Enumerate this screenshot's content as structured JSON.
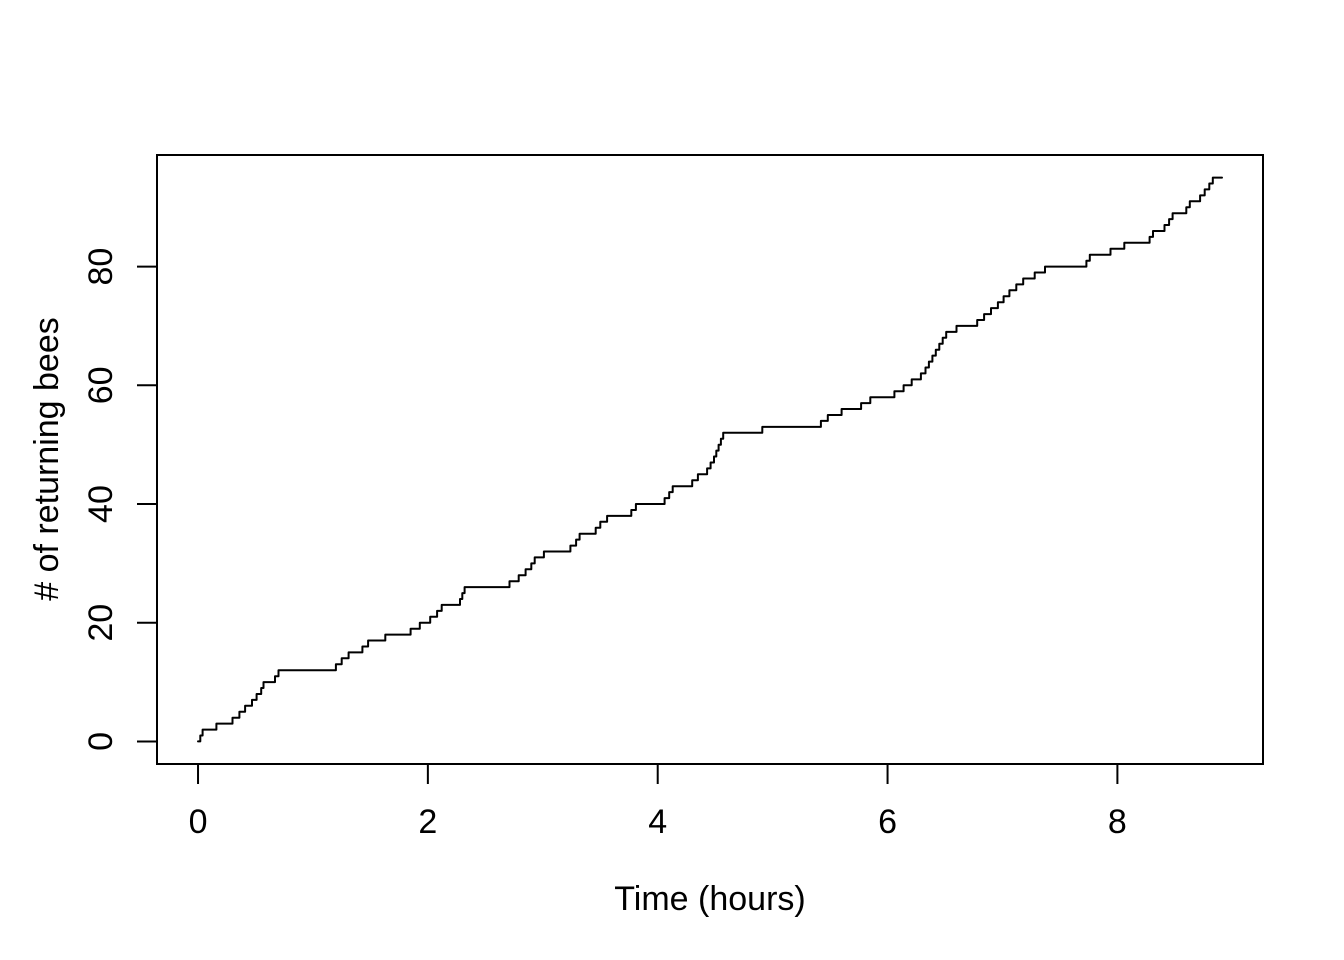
{
  "chart_data": {
    "type": "line",
    "subtype": "step",
    "title": "",
    "xlabel": "Time (hours)",
    "ylabel": "# of returning bees",
    "x_ticks": [
      0,
      2,
      4,
      6,
      8
    ],
    "x_tick_labels": [
      "0",
      "2",
      "4",
      "6",
      "8"
    ],
    "y_ticks": [
      0,
      20,
      40,
      60,
      80
    ],
    "y_tick_labels": [
      "0",
      "20",
      "40",
      "60",
      "80"
    ],
    "xlim_usr": [
      -0.357,
      9.267
    ],
    "ylim_usr": [
      -3.8,
      98.8
    ],
    "x_start": 0,
    "x_end": 8.91,
    "final_count": 95,
    "line_color": "#000000",
    "background_color": "#ffffff",
    "grid": false,
    "legend": false,
    "events": [
      0.02,
      0.04,
      0.16,
      0.3,
      0.36,
      0.41,
      0.47,
      0.51,
      0.55,
      0.57,
      0.67,
      0.7,
      1.2,
      1.25,
      1.31,
      1.43,
      1.48,
      1.63,
      1.85,
      1.93,
      2.02,
      2.08,
      2.12,
      2.28,
      2.3,
      2.32,
      2.71,
      2.79,
      2.85,
      2.9,
      2.93,
      3.01,
      3.24,
      3.29,
      3.32,
      3.46,
      3.5,
      3.56,
      3.77,
      3.81,
      4.06,
      4.1,
      4.13,
      4.3,
      4.35,
      4.43,
      4.46,
      4.49,
      4.51,
      4.53,
      4.55,
      4.57,
      4.91,
      5.42,
      5.48,
      5.6,
      5.77,
      5.85,
      6.06,
      6.14,
      6.21,
      6.29,
      6.33,
      6.36,
      6.39,
      6.42,
      6.45,
      6.48,
      6.51,
      6.6,
      6.78,
      6.84,
      6.9,
      6.96,
      7.01,
      7.06,
      7.12,
      7.18,
      7.28,
      7.37,
      7.73,
      7.76,
      7.94,
      8.06,
      8.28,
      8.31,
      8.41,
      8.45,
      8.48,
      8.6,
      8.63,
      8.72,
      8.76,
      8.8,
      8.83
    ]
  }
}
